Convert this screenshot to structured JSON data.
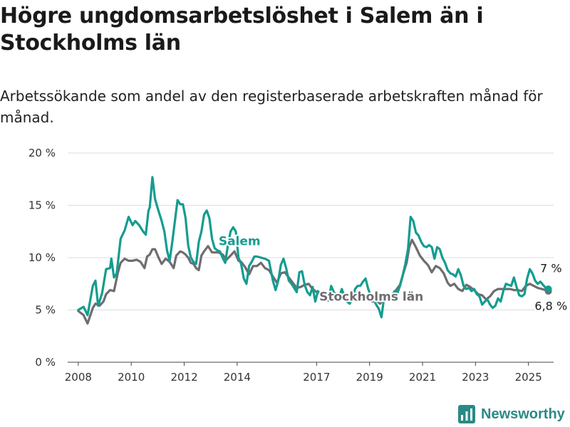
{
  "title": "Högre ungdomsarbetslöshet i Salem än i Stockholms län",
  "subtitle": "Arbetssökande som andel av den registerbaserade arbetskraften månad för månad.",
  "brand": "Newsworthy",
  "colors": {
    "salem": "#149c90",
    "stockholm": "#6f6c70",
    "grid": "#dcdcdc",
    "axis": "#555555"
  },
  "chart_data": {
    "type": "line",
    "ylim": [
      0,
      20
    ],
    "xlim": [
      2007.6,
      2025.95
    ],
    "y_ticks": [
      0,
      5,
      10,
      15,
      20
    ],
    "y_tick_labels": [
      "0 %",
      "5 %",
      "10 %",
      "15 %",
      "20 %"
    ],
    "x_ticks": [
      2008,
      2010,
      2012,
      2014,
      2017,
      2019,
      2021,
      2023,
      2025
    ],
    "x_tick_labels": [
      "2008",
      "2010",
      "2012",
      "2014",
      "2017",
      "2019",
      "2021",
      "2023",
      "2025"
    ],
    "grid": "horizontal",
    "series": [
      {
        "name": "Salem",
        "label": "Salem",
        "end_label": "7 %",
        "points": [
          [
            2008.0,
            5.0
          ],
          [
            2008.2,
            5.3
          ],
          [
            2008.35,
            4.5
          ],
          [
            2008.55,
            7.3
          ],
          [
            2008.65,
            7.8
          ],
          [
            2008.75,
            5.4
          ],
          [
            2008.9,
            6.6
          ],
          [
            2009.05,
            8.9
          ],
          [
            2009.2,
            9.0
          ],
          [
            2009.25,
            9.9
          ],
          [
            2009.35,
            8.1
          ],
          [
            2009.45,
            8.5
          ],
          [
            2009.6,
            11.8
          ],
          [
            2009.75,
            12.6
          ],
          [
            2009.9,
            13.9
          ],
          [
            2010.05,
            13.1
          ],
          [
            2010.15,
            13.5
          ],
          [
            2010.3,
            13.1
          ],
          [
            2010.45,
            12.5
          ],
          [
            2010.55,
            12.2
          ],
          [
            2010.65,
            14.5
          ],
          [
            2010.7,
            14.8
          ],
          [
            2010.8,
            17.7
          ],
          [
            2010.9,
            15.6
          ],
          [
            2011.0,
            14.7
          ],
          [
            2011.15,
            13.5
          ],
          [
            2011.25,
            12.5
          ],
          [
            2011.35,
            10.7
          ],
          [
            2011.45,
            9.7
          ],
          [
            2011.55,
            11.5
          ],
          [
            2011.65,
            13.5
          ],
          [
            2011.75,
            15.5
          ],
          [
            2011.85,
            15.1
          ],
          [
            2011.95,
            15.1
          ],
          [
            2012.05,
            13.8
          ],
          [
            2012.15,
            11.2
          ],
          [
            2012.25,
            10.0
          ],
          [
            2012.35,
            9.6
          ],
          [
            2012.45,
            9.4
          ],
          [
            2012.55,
            11.5
          ],
          [
            2012.65,
            12.5
          ],
          [
            2012.75,
            14.1
          ],
          [
            2012.85,
            14.5
          ],
          [
            2012.95,
            13.8
          ],
          [
            2013.05,
            11.8
          ],
          [
            2013.15,
            10.9
          ],
          [
            2013.25,
            10.7
          ],
          [
            2013.35,
            10.6
          ],
          [
            2013.45,
            10.0
          ],
          [
            2013.55,
            9.5
          ],
          [
            2013.65,
            11.2
          ],
          [
            2013.75,
            12.5
          ],
          [
            2013.85,
            12.9
          ],
          [
            2013.95,
            12.5
          ],
          [
            2014.05,
            10.0
          ],
          [
            2014.15,
            9.4
          ],
          [
            2014.25,
            8.0
          ],
          [
            2014.35,
            7.5
          ],
          [
            2014.45,
            9.2
          ],
          [
            2014.55,
            9.6
          ],
          [
            2014.65,
            10.1
          ],
          [
            2014.75,
            10.1
          ],
          [
            2014.9,
            10.0
          ],
          [
            2015.05,
            9.9
          ],
          [
            2015.2,
            9.7
          ],
          [
            2015.35,
            7.8
          ],
          [
            2015.45,
            6.9
          ],
          [
            2015.55,
            7.8
          ],
          [
            2015.65,
            9.3
          ],
          [
            2015.75,
            9.9
          ],
          [
            2015.85,
            9.0
          ],
          [
            2015.95,
            7.8
          ],
          [
            2016.05,
            7.5
          ],
          [
            2016.15,
            7.1
          ],
          [
            2016.25,
            6.7
          ],
          [
            2016.35,
            8.6
          ],
          [
            2016.45,
            8.7
          ],
          [
            2016.55,
            7.4
          ],
          [
            2016.65,
            6.7
          ],
          [
            2016.75,
            6.4
          ],
          [
            2016.85,
            7.2
          ],
          [
            2016.95,
            5.8
          ],
          [
            2017.05,
            6.8
          ],
          [
            2017.15,
            6.5
          ],
          [
            2017.25,
            6.1
          ],
          [
            2017.35,
            6.0
          ],
          [
            2017.45,
            5.9
          ],
          [
            2017.55,
            7.3
          ],
          [
            2017.65,
            6.7
          ],
          [
            2017.75,
            6.4
          ],
          [
            2017.85,
            6.2
          ],
          [
            2017.95,
            7.0
          ],
          [
            2018.05,
            6.3
          ],
          [
            2018.15,
            5.8
          ],
          [
            2018.25,
            5.6
          ],
          [
            2018.35,
            6.0
          ],
          [
            2018.45,
            7.0
          ],
          [
            2018.55,
            7.3
          ],
          [
            2018.65,
            7.3
          ],
          [
            2018.75,
            7.7
          ],
          [
            2018.85,
            8.0
          ],
          [
            2018.95,
            7.0
          ],
          [
            2019.05,
            6.3
          ],
          [
            2019.15,
            6.0
          ],
          [
            2019.25,
            5.5
          ],
          [
            2019.35,
            5.1
          ],
          [
            2019.45,
            4.3
          ],
          [
            2019.55,
            6.2
          ],
          [
            2019.65,
            6.0
          ],
          [
            2019.75,
            6.2
          ],
          [
            2019.85,
            6.4
          ],
          [
            2019.95,
            6.8
          ],
          [
            2020.05,
            6.6
          ],
          [
            2020.15,
            7.3
          ],
          [
            2020.25,
            8.3
          ],
          [
            2020.35,
            9.4
          ],
          [
            2020.45,
            10.8
          ],
          [
            2020.55,
            13.9
          ],
          [
            2020.65,
            13.5
          ],
          [
            2020.75,
            12.4
          ],
          [
            2020.85,
            12.1
          ],
          [
            2020.95,
            11.5
          ],
          [
            2021.05,
            11.1
          ],
          [
            2021.15,
            11.0
          ],
          [
            2021.25,
            11.2
          ],
          [
            2021.35,
            11.0
          ],
          [
            2021.45,
            9.9
          ],
          [
            2021.55,
            11.0
          ],
          [
            2021.65,
            10.8
          ],
          [
            2021.75,
            10.0
          ],
          [
            2021.85,
            9.5
          ],
          [
            2021.95,
            8.8
          ],
          [
            2022.05,
            8.5
          ],
          [
            2022.15,
            8.4
          ],
          [
            2022.25,
            8.2
          ],
          [
            2022.35,
            8.9
          ],
          [
            2022.45,
            8.3
          ],
          [
            2022.55,
            7.3
          ],
          [
            2022.65,
            7.0
          ],
          [
            2022.75,
            7.1
          ],
          [
            2022.85,
            6.8
          ],
          [
            2022.95,
            7.0
          ],
          [
            2023.05,
            6.5
          ],
          [
            2023.15,
            6.3
          ],
          [
            2023.25,
            5.5
          ],
          [
            2023.35,
            5.8
          ],
          [
            2023.45,
            6.0
          ],
          [
            2023.55,
            5.5
          ],
          [
            2023.65,
            5.2
          ],
          [
            2023.75,
            5.4
          ],
          [
            2023.85,
            6.1
          ],
          [
            2023.95,
            5.8
          ],
          [
            2024.05,
            6.8
          ],
          [
            2024.15,
            7.5
          ],
          [
            2024.25,
            7.4
          ],
          [
            2024.35,
            7.3
          ],
          [
            2024.45,
            8.1
          ],
          [
            2024.55,
            7.2
          ],
          [
            2024.65,
            6.4
          ],
          [
            2024.75,
            6.3
          ],
          [
            2024.85,
            6.5
          ],
          [
            2024.95,
            8.0
          ],
          [
            2025.05,
            8.9
          ],
          [
            2025.15,
            8.5
          ],
          [
            2025.25,
            7.8
          ],
          [
            2025.35,
            7.5
          ],
          [
            2025.45,
            7.7
          ],
          [
            2025.55,
            7.4
          ],
          [
            2025.65,
            7.1
          ],
          [
            2025.75,
            7.0
          ]
        ]
      },
      {
        "name": "Stockholms län",
        "label": "Stockholms län",
        "end_label": "6,8 %",
        "points": [
          [
            2008.0,
            4.9
          ],
          [
            2008.2,
            4.5
          ],
          [
            2008.35,
            3.7
          ],
          [
            2008.55,
            5.2
          ],
          [
            2008.65,
            5.6
          ],
          [
            2008.8,
            5.4
          ],
          [
            2008.95,
            5.8
          ],
          [
            2009.05,
            6.5
          ],
          [
            2009.2,
            6.9
          ],
          [
            2009.35,
            6.8
          ],
          [
            2009.5,
            8.6
          ],
          [
            2009.6,
            9.5
          ],
          [
            2009.75,
            9.9
          ],
          [
            2009.9,
            9.7
          ],
          [
            2010.05,
            9.7
          ],
          [
            2010.2,
            9.8
          ],
          [
            2010.35,
            9.6
          ],
          [
            2010.5,
            9.0
          ],
          [
            2010.6,
            10.1
          ],
          [
            2010.7,
            10.3
          ],
          [
            2010.8,
            10.8
          ],
          [
            2010.9,
            10.8
          ],
          [
            2011.05,
            9.9
          ],
          [
            2011.15,
            9.4
          ],
          [
            2011.3,
            9.9
          ],
          [
            2011.45,
            9.6
          ],
          [
            2011.6,
            9.0
          ],
          [
            2011.7,
            10.2
          ],
          [
            2011.85,
            10.6
          ],
          [
            2011.95,
            10.5
          ],
          [
            2012.05,
            10.3
          ],
          [
            2012.15,
            10.0
          ],
          [
            2012.25,
            9.5
          ],
          [
            2012.35,
            9.4
          ],
          [
            2012.45,
            9.0
          ],
          [
            2012.55,
            8.8
          ],
          [
            2012.65,
            10.2
          ],
          [
            2012.75,
            10.6
          ],
          [
            2012.9,
            11.1
          ],
          [
            2013.05,
            10.5
          ],
          [
            2013.15,
            10.5
          ],
          [
            2013.3,
            10.5
          ],
          [
            2013.45,
            10.3
          ],
          [
            2013.6,
            9.8
          ],
          [
            2013.75,
            10.2
          ],
          [
            2013.9,
            10.6
          ],
          [
            2014.05,
            9.7
          ],
          [
            2014.15,
            9.6
          ],
          [
            2014.3,
            9.1
          ],
          [
            2014.45,
            8.4
          ],
          [
            2014.6,
            9.2
          ],
          [
            2014.75,
            9.2
          ],
          [
            2014.9,
            9.5
          ],
          [
            2015.05,
            9.0
          ],
          [
            2015.2,
            8.8
          ],
          [
            2015.35,
            8.2
          ],
          [
            2015.5,
            7.6
          ],
          [
            2015.65,
            8.5
          ],
          [
            2015.8,
            8.6
          ],
          [
            2015.95,
            8.1
          ],
          [
            2016.1,
            7.6
          ],
          [
            2016.25,
            7.1
          ],
          [
            2016.4,
            7.2
          ],
          [
            2016.55,
            7.4
          ],
          [
            2016.7,
            7.5
          ],
          [
            2016.85,
            7.0
          ],
          [
            2017.0,
            6.7
          ],
          [
            2017.15,
            6.6
          ],
          [
            2017.3,
            6.4
          ],
          [
            2017.45,
            6.6
          ],
          [
            2017.6,
            6.5
          ],
          [
            2017.75,
            6.3
          ],
          [
            2017.9,
            6.2
          ],
          [
            2018.05,
            6.2
          ],
          [
            2018.2,
            6.0
          ],
          [
            2018.35,
            6.3
          ],
          [
            2018.5,
            6.6
          ],
          [
            2018.65,
            6.6
          ],
          [
            2018.8,
            6.4
          ],
          [
            2018.95,
            6.1
          ],
          [
            2019.1,
            5.8
          ],
          [
            2019.25,
            5.9
          ],
          [
            2019.4,
            5.6
          ],
          [
            2019.55,
            6.3
          ],
          [
            2019.7,
            6.4
          ],
          [
            2019.85,
            6.4
          ],
          [
            2020.0,
            6.9
          ],
          [
            2020.15,
            7.4
          ],
          [
            2020.3,
            8.7
          ],
          [
            2020.4,
            9.5
          ],
          [
            2020.5,
            11.0
          ],
          [
            2020.6,
            11.7
          ],
          [
            2020.75,
            11.0
          ],
          [
            2020.9,
            10.2
          ],
          [
            2021.05,
            9.7
          ],
          [
            2021.2,
            9.3
          ],
          [
            2021.35,
            8.6
          ],
          [
            2021.5,
            9.2
          ],
          [
            2021.65,
            9.0
          ],
          [
            2021.8,
            8.5
          ],
          [
            2021.95,
            7.6
          ],
          [
            2022.05,
            7.3
          ],
          [
            2022.2,
            7.5
          ],
          [
            2022.35,
            7.0
          ],
          [
            2022.5,
            6.8
          ],
          [
            2022.65,
            7.4
          ],
          [
            2022.8,
            7.2
          ],
          [
            2022.95,
            6.9
          ],
          [
            2023.1,
            6.5
          ],
          [
            2023.25,
            6.4
          ],
          [
            2023.4,
            6.0
          ],
          [
            2023.55,
            6.3
          ],
          [
            2023.7,
            6.8
          ],
          [
            2023.85,
            7.0
          ],
          [
            2024.0,
            7.0
          ],
          [
            2024.15,
            7.0
          ],
          [
            2024.3,
            7.0
          ],
          [
            2024.45,
            6.9
          ],
          [
            2024.6,
            6.9
          ],
          [
            2024.75,
            6.8
          ],
          [
            2024.9,
            7.3
          ],
          [
            2025.05,
            7.5
          ],
          [
            2025.2,
            7.3
          ],
          [
            2025.35,
            7.1
          ],
          [
            2025.5,
            7.0
          ],
          [
            2025.65,
            6.9
          ],
          [
            2025.75,
            6.8
          ]
        ]
      }
    ]
  }
}
